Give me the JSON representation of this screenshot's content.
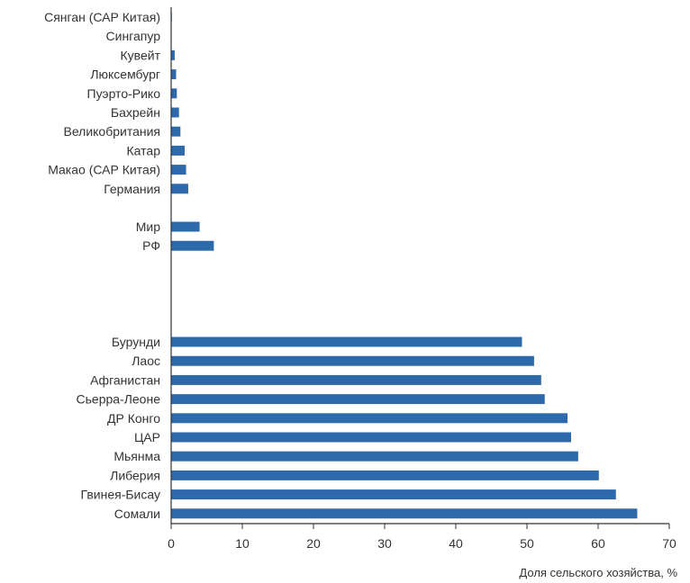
{
  "chart_data": {
    "type": "bar",
    "orientation": "horizontal",
    "title": "",
    "xlabel": "Доля сельского хозяйства, %",
    "ylabel": "",
    "xlim": [
      0,
      70
    ],
    "xticks": [
      "0",
      "10",
      "20",
      "30",
      "40",
      "50",
      "60",
      "70"
    ],
    "grid": false,
    "bar_color": "#2e6aab",
    "categories": [
      "Сянган (САР Китая)",
      "Сингапур",
      "Кувейт",
      "Люксембург",
      "Пуэрто-Рико",
      "Бахрейн",
      "Великобритания",
      "Катар",
      "Макао (САР Китая)",
      "Германия",
      "Мир",
      "РФ",
      "Бурунди",
      "Лаос",
      "Афганистан",
      "Сьерра-Леоне",
      "ДР Конго",
      "ЦАР",
      "Мьянма",
      "Либерия",
      "Гвинея-Бисау",
      "Сомали"
    ],
    "values": [
      0.1,
      0.0,
      0.5,
      0.7,
      0.8,
      1.1,
      1.3,
      1.9,
      2.1,
      2.4,
      4.0,
      6.0,
      49.3,
      51.0,
      52.0,
      52.5,
      55.7,
      56.2,
      57.2,
      60.1,
      62.5,
      65.5
    ]
  }
}
